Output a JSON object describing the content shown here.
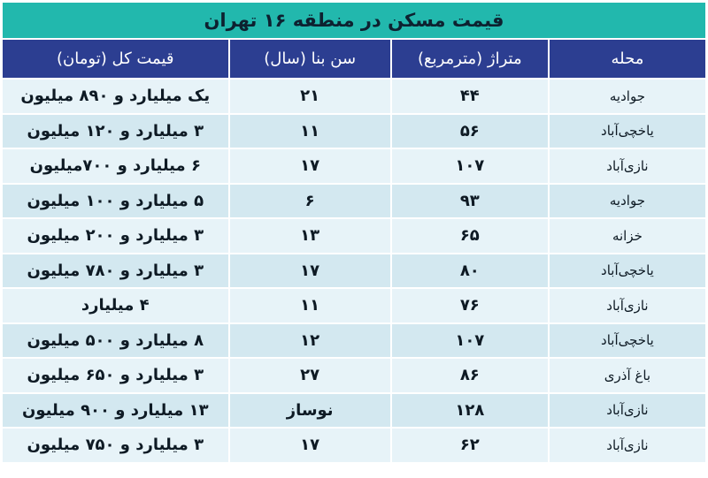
{
  "title": "قیمت مسکن در منطقه ۱۶ تهران",
  "colors": {
    "title_bg": "#22b8ad",
    "header_bg": "#2c3e91",
    "row_light": "#e7f3f8",
    "row_dark": "#d3e8f0"
  },
  "headers": [
    "محله",
    "متراژ (مترمربع)",
    "سن بنا (سال)",
    "قیمت کل (تومان)"
  ],
  "rows": [
    [
      "جوادیه",
      "۴۴",
      "۲۱",
      "یک میلیارد و ۸۹۰ میلیون"
    ],
    [
      "یاخچی‌آباد",
      "۵۶",
      "۱۱",
      "۳ میلیارد و ۱۲۰ میلیون"
    ],
    [
      "نازی‌آباد",
      "۱۰۷",
      "۱۷",
      "۶ میلیارد و  ۷۰۰میلیون"
    ],
    [
      "جوادیه",
      "۹۳",
      "۶",
      "۵ میلیارد و ۱۰۰ میلیون"
    ],
    [
      "خزانه",
      "۶۵",
      "۱۳",
      "۳ میلیارد و ۲۰۰ میلیون"
    ],
    [
      "یاخچی‌آباد",
      "۸۰",
      "۱۷",
      "۳ میلیارد و ۷۸۰ میلیون"
    ],
    [
      "نازی‌آباد",
      "۷۶",
      "۱۱",
      "۴ میلیارد"
    ],
    [
      "یاخچی‌آباد",
      "۱۰۷",
      "۱۲",
      "۸ میلیارد و ۵۰۰ میلیون"
    ],
    [
      "باغ آذری",
      "۸۶",
      "۲۷",
      "۳ میلیارد و ۶۵۰ میلیون"
    ],
    [
      "نازی‌آباد",
      "۱۲۸",
      "نوساز",
      "۱۳ میلیارد و ۹۰۰ میلیون"
    ],
    [
      "نازی‌آباد",
      "۶۲",
      "۱۷",
      "۳ میلیارد و ۷۵۰ میلیون"
    ]
  ]
}
